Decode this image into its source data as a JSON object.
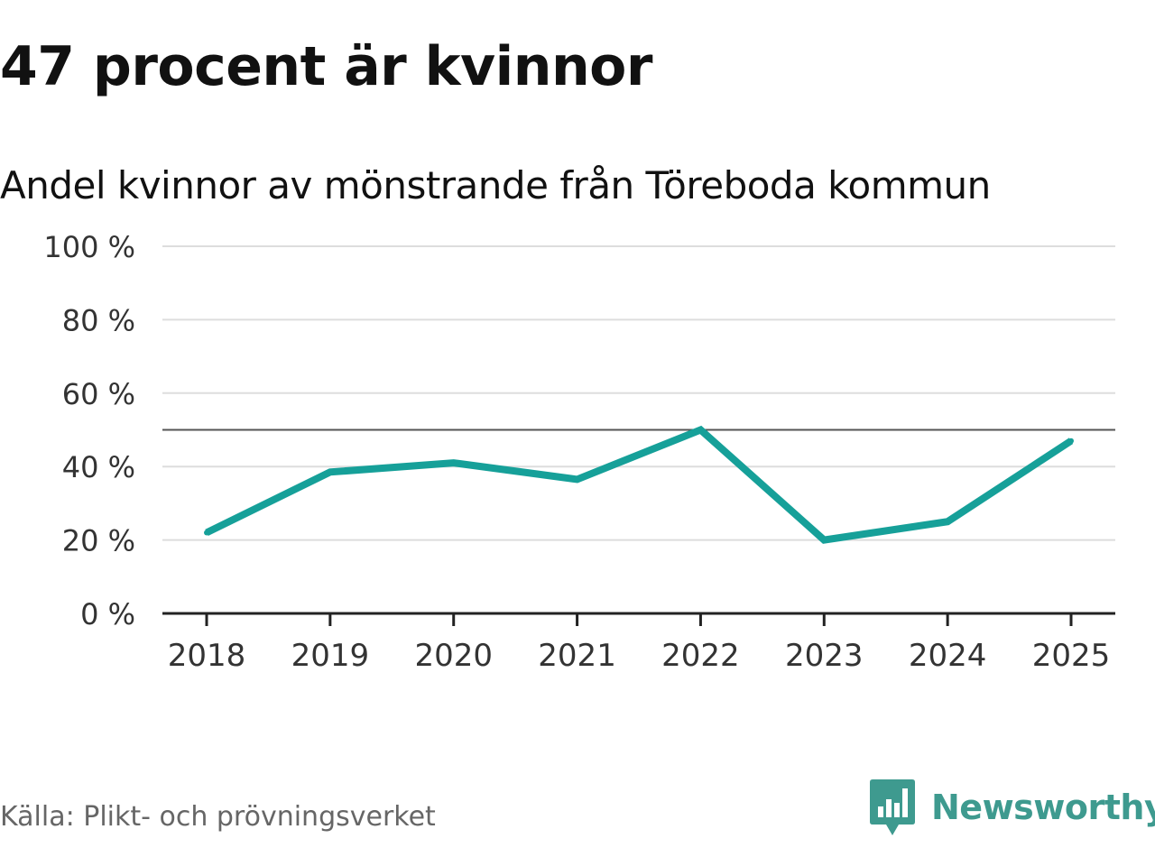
{
  "headline": "47 procent är kvinnor",
  "brand": {
    "name": "Newsworthy",
    "logo_icon": "bar-chart-speech-bubble-icon",
    "color": "#3e9a8f"
  },
  "source": "Källa: Plikt- och prövningsverket",
  "colors": {
    "line": "#16a099",
    "grid": "#dddddd",
    "reference": "#555555",
    "axis": "#222222",
    "tick_text": "#333333"
  },
  "chart_data": {
    "type": "line",
    "title": "Andel kvinnor av mönstrande från Töreboda kommun",
    "xlabel": "",
    "ylabel": "",
    "categories": [
      "2018",
      "2019",
      "2020",
      "2021",
      "2022",
      "2023",
      "2024",
      "2025"
    ],
    "series": [
      {
        "values": [
          22,
          38.5,
          41,
          36.5,
          50,
          20,
          25,
          47
        ]
      }
    ],
    "ylim": [
      0,
      100
    ],
    "yticks": [
      0,
      20,
      40,
      60,
      80,
      100
    ],
    "ytick_labels": [
      "0 %",
      "20 %",
      "40 %",
      "60 %",
      "80 %",
      "100 %"
    ],
    "reference_line": 50,
    "grid": true,
    "legend": "none"
  }
}
